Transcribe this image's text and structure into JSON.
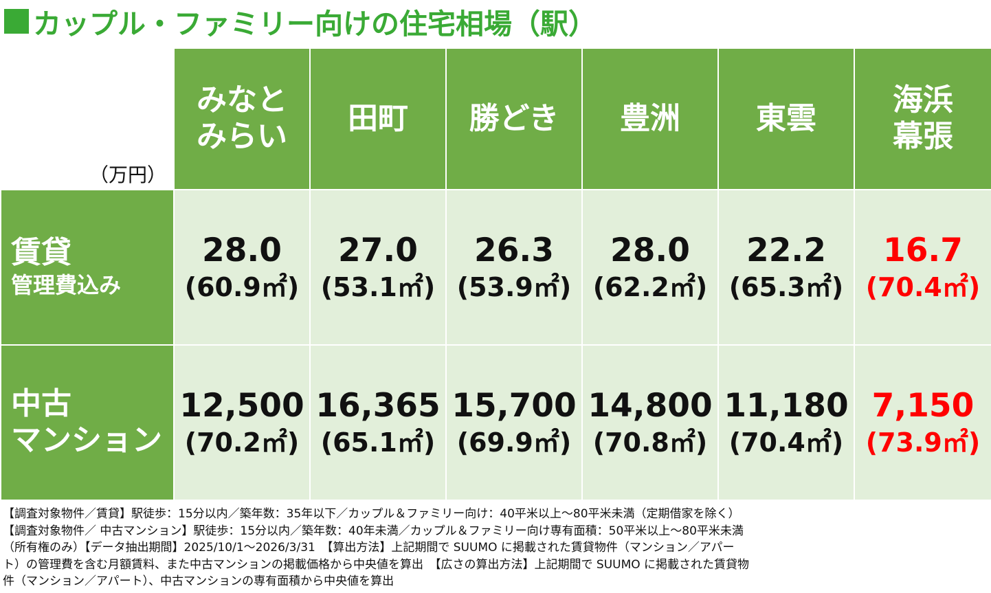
{
  "title": "カップル・ファミリー向けの住宅相場（駅）",
  "unit": "（万円）",
  "stations": [
    {
      "line1": "みなと",
      "line2": "みらい"
    },
    {
      "line1": "田町",
      "line2": ""
    },
    {
      "line1": "勝どき",
      "line2": ""
    },
    {
      "line1": "豊洲",
      "line2": ""
    },
    {
      "line1": "東雲",
      "line2": ""
    },
    {
      "line1": "海浜",
      "line2": "幕張"
    }
  ],
  "rows": [
    {
      "main": "賃貸",
      "sub": "管理費込み",
      "cells": [
        {
          "value": "28.0",
          "area": "(60.9㎡)"
        },
        {
          "value": "27.0",
          "area": "(53.1㎡)"
        },
        {
          "value": "26.3",
          "area": "(53.9㎡)"
        },
        {
          "value": "28.0",
          "area": "(62.2㎡)"
        },
        {
          "value": "22.2",
          "area": "(65.3㎡)"
        },
        {
          "value": "16.7",
          "area": "(70.4㎡)"
        }
      ]
    },
    {
      "main": "中古",
      "sub": "マンション",
      "cells": [
        {
          "value": "12,500",
          "area": "(70.2㎡)"
        },
        {
          "value": "16,365",
          "area": "(65.1㎡)"
        },
        {
          "value": "15,700",
          "area": "(69.9㎡)"
        },
        {
          "value": "14,800",
          "area": "(70.8㎡)"
        },
        {
          "value": "11,180",
          "area": "(70.4㎡)"
        },
        {
          "value": "7,150",
          "area": "(73.9㎡)"
        }
      ]
    }
  ],
  "highlight_color": "#ff0000",
  "accent_color": "#70ad47",
  "note": "【調査対象物件／賃貸】駅徒歩：15分以内／築年数：35年以下／カップル＆ファミリー向け：40平米以上～80平米未満（定期借家を除く）　【調査対象物件／ 中古マンション】駅徒歩：15分以内／築年数：40年未満／カップル＆ファミリー向け専有面積：50平米以上～80平米未満（所有権のみ）【データ抽出期間】2025/10/1～2026/3/31　【算出方法】上記期間で SUUMO に掲載された賃貸物件（マンション／アパート）の管理費を含む月額賃料、また中古マンションの掲載価格から中央値を算出　【広さの算出方法】上記期間で SUUMO に掲載された賃貸物件（マンション／アパート）、中古マンションの専有面積から中央値を算出"
}
